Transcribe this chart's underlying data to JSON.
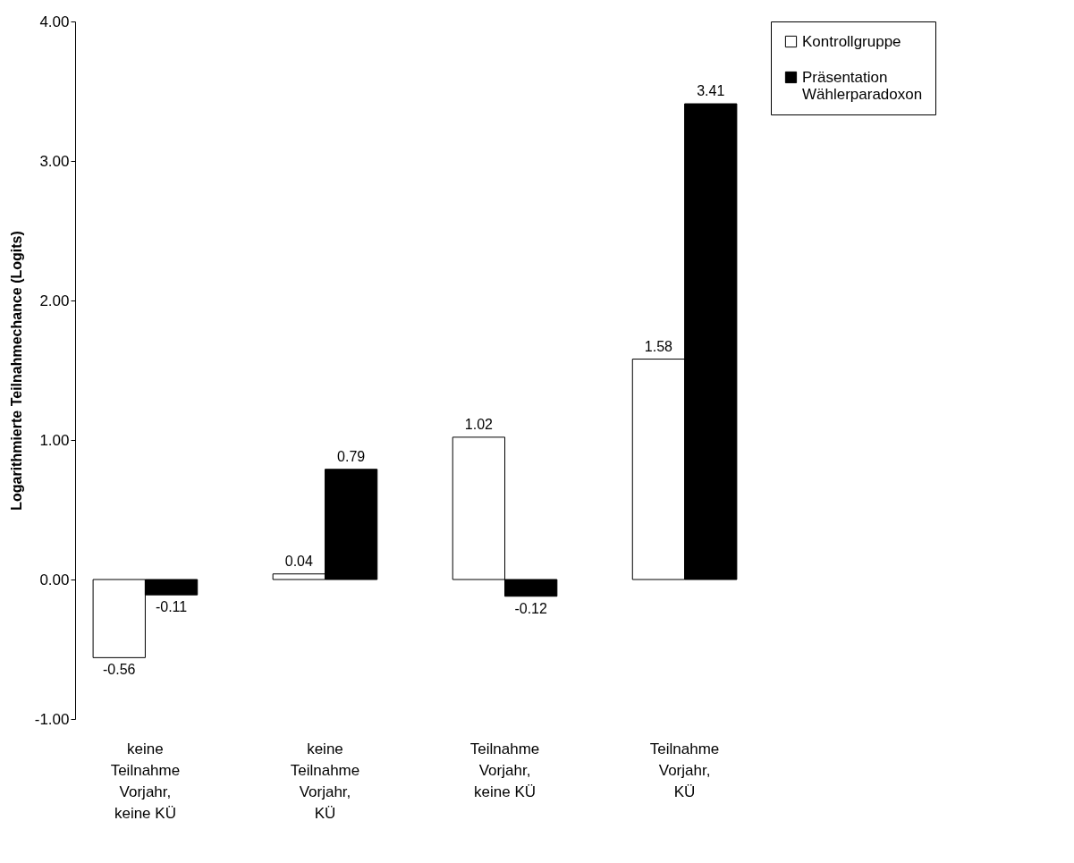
{
  "chart_data": {
    "type": "bar",
    "ylabel": "Logarithmierte Teilnahmechance (Logits)",
    "categories": [
      "keine Teilnahme Vorjahr, keine KÜ",
      "keine Teilnahme Vorjahr, KÜ",
      "Teilnahme Vorjahr, keine KÜ",
      "Teilnahme Vorjahr, KÜ"
    ],
    "series": [
      {
        "name": "Kontrollgruppe",
        "color": "#ffffff",
        "values": [
          -0.56,
          0.04,
          1.02,
          1.58
        ]
      },
      {
        "name": "Präsentation Wählerparadoxon",
        "color": "#000000",
        "values": [
          -0.11,
          0.79,
          -0.12,
          3.41
        ]
      }
    ],
    "ylim": [
      -1,
      4
    ],
    "yticks": [
      {
        "value": -1,
        "label": "-1.00"
      },
      {
        "value": 0,
        "label": "0.00"
      },
      {
        "value": 1,
        "label": "1.00"
      },
      {
        "value": 2,
        "label": "2.00"
      },
      {
        "value": 3,
        "label": "3.00"
      },
      {
        "value": 4,
        "label": "4.00"
      }
    ],
    "data_labels": true,
    "grid": false,
    "legend": "right"
  }
}
